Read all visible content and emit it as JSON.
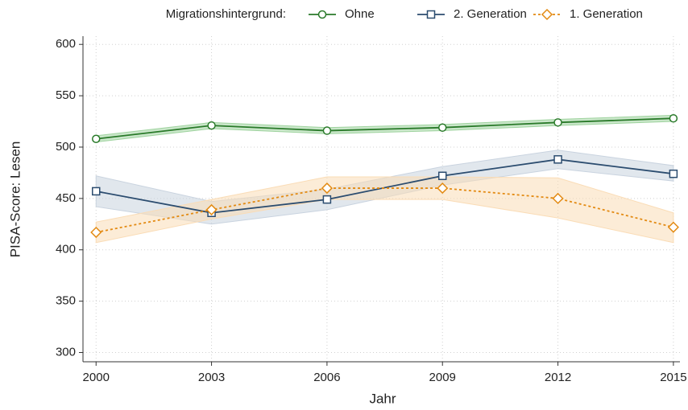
{
  "chart_data": {
    "type": "line",
    "y_label": "PISA-Score: Lesen",
    "x_label": "Jahr",
    "legend_title": "Migrationshintergrund:",
    "legend_position": "top",
    "grid": true,
    "x": [
      2000,
      2003,
      2006,
      2009,
      2012,
      2015
    ],
    "xlim": [
      1999.66,
      2015.17
    ],
    "xticks": [
      2000,
      2003,
      2006,
      2009,
      2012,
      2015
    ],
    "ylim": [
      291,
      608
    ],
    "yticks": [
      300,
      350,
      400,
      450,
      500,
      550,
      600
    ],
    "series": [
      {
        "name": "Ohne",
        "color": "#2a7a2a",
        "band_color": "#9fd39f",
        "marker": "circle",
        "dashed": false,
        "values": [
          508,
          521,
          516,
          519,
          524,
          528
        ],
        "lower": [
          505,
          518,
          513,
          516,
          521,
          525
        ],
        "upper": [
          511,
          524,
          519,
          522,
          527,
          531
        ]
      },
      {
        "name": "2. Generation",
        "color": "#2b4c6f",
        "band_color": "#c9d3df",
        "marker": "square",
        "dashed": false,
        "values": [
          457,
          436,
          449,
          472,
          488,
          474
        ],
        "lower": [
          442,
          425,
          439,
          463,
          479,
          467
        ],
        "upper": [
          472,
          447,
          459,
          481,
          497,
          482
        ]
      },
      {
        "name": "1. Generation",
        "color": "#e38a12",
        "band_color": "#fadcb6",
        "marker": "diamond",
        "dashed": true,
        "values": [
          417,
          439,
          460,
          460,
          450,
          422
        ],
        "lower": [
          407,
          430,
          449,
          449,
          431,
          407
        ],
        "upper": [
          427,
          449,
          471,
          471,
          470,
          436
        ]
      }
    ]
  }
}
